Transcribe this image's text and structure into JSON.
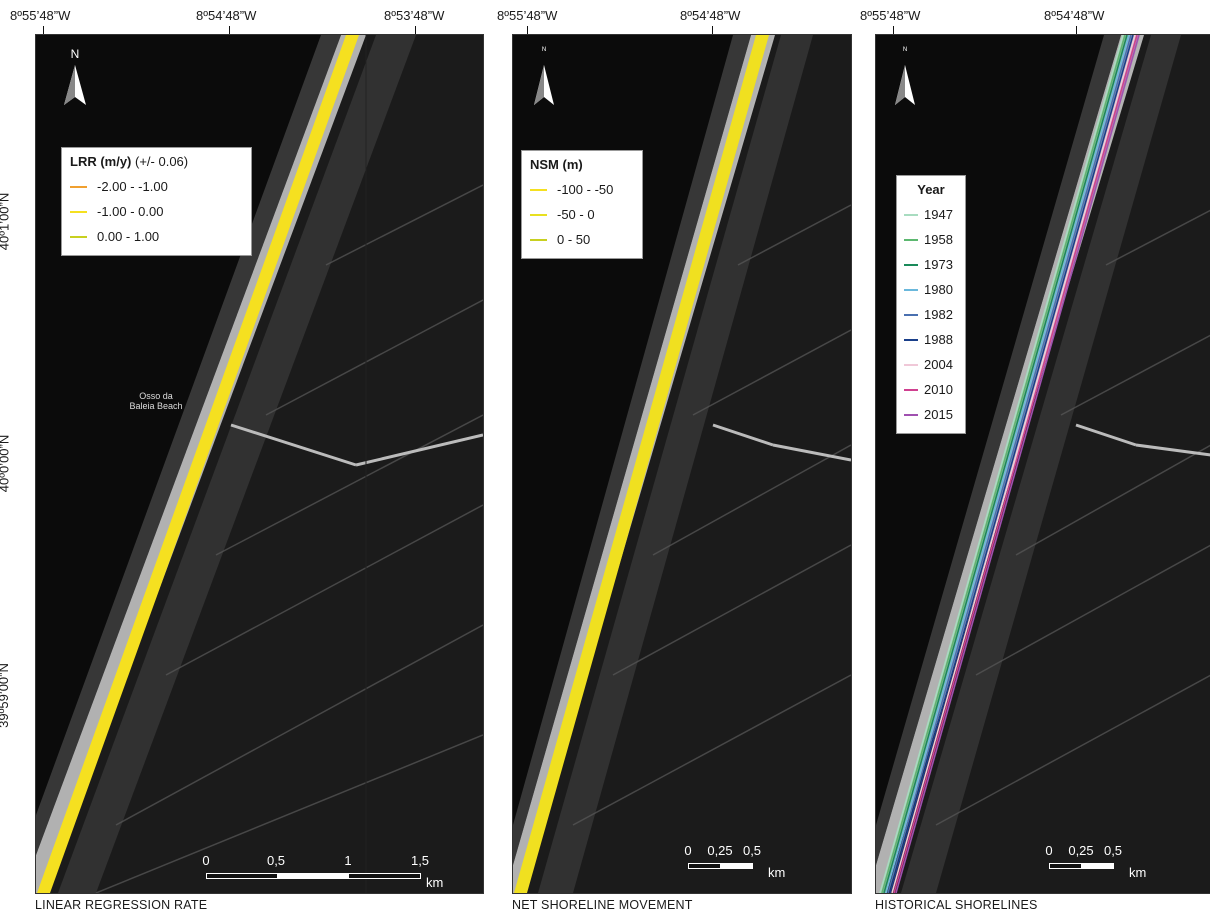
{
  "top_coords": {
    "p1": [
      "8º55’48”W",
      "8º54’48”W",
      "8º53’48”W"
    ],
    "p2": [
      "8º55’48”W",
      "8º54’48”W"
    ],
    "p3": [
      "8º55’48”W",
      "8º54’48”W"
    ]
  },
  "left_coords": [
    "40º1’00”N",
    "40º0’00”N",
    "39º59’00”N"
  ],
  "panels": {
    "lrr": {
      "caption": "LINEAR REGRESSION RATE",
      "north_label": "N",
      "place_label": "Osso da Baleia Beach",
      "legend": {
        "title": "LRR (m/y)",
        "subtitle": "(+/- 0.06)",
        "items": [
          {
            "label": "-2.00 - -1.00",
            "color": "#f0a030"
          },
          {
            "label": "-1.00 - 0.00",
            "color": "#f5e020"
          },
          {
            "label": "0.00 - 1.00",
            "color": "#c8d020"
          }
        ]
      },
      "scale": {
        "labels": [
          "0",
          "0,5",
          "1",
          "1,5"
        ],
        "unit": "km"
      }
    },
    "nsm": {
      "caption": "NET SHORELINE MOVEMENT",
      "north_label": "N",
      "legend": {
        "title": "NSM (m)",
        "items": [
          {
            "label": "-100 - -50",
            "color": "#f5e020"
          },
          {
            "label": "-50 - 0",
            "color": "#e8e020"
          },
          {
            "label": "0 - 50",
            "color": "#c8d020"
          }
        ]
      },
      "scale": {
        "labels": [
          "0",
          "0,25",
          "0,5"
        ],
        "unit": "km"
      }
    },
    "hist": {
      "caption": "HISTORICAL SHORELINES",
      "north_label": "N",
      "legend": {
        "title": "Year",
        "items": [
          {
            "label": "1947",
            "color": "#a8dcc0"
          },
          {
            "label": "1958",
            "color": "#5cb870"
          },
          {
            "label": "1973",
            "color": "#1a8a5a"
          },
          {
            "label": "1980",
            "color": "#6ab8dc"
          },
          {
            "label": "1982",
            "color": "#4a70b0"
          },
          {
            "label": "1988",
            "color": "#1a3f8a"
          },
          {
            "label": "2004",
            "color": "#f0c8d8"
          },
          {
            "label": "2010",
            "color": "#d04090"
          },
          {
            "label": "2015",
            "color": "#a050b0"
          }
        ]
      },
      "scale": {
        "labels": [
          "0",
          "0,25",
          "0,5"
        ],
        "unit": "km"
      }
    }
  }
}
